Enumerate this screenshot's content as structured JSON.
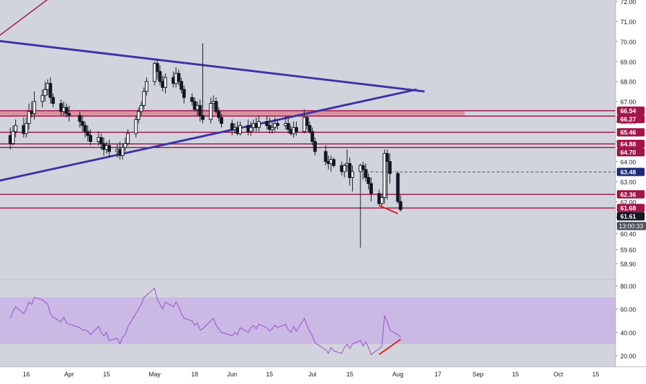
{
  "colors": {
    "background": "#d1d4dc",
    "axis_background": "#ffffff",
    "axis_text": "#131722",
    "trend_line": "#3b33a8",
    "level_line": "#a3154a",
    "zone_fill": "#e07b8c",
    "divergence": "#e82020",
    "rsi_line": "#9b4dca",
    "rsi_band": "#c9b3e6",
    "candle_up": "#ffffff",
    "candle_down": "#131722",
    "current_price_badge": "#131722",
    "level_badge": "#a3154a",
    "marker_badge": "#1e2a78"
  },
  "chart_data": [
    {
      "type": "candlestick",
      "role": "price",
      "x": [
        "2021-03-10",
        "2021-03-11",
        "2021-03-12",
        "2021-03-15",
        "2021-03-16",
        "2021-03-17",
        "2021-03-18",
        "2021-03-19",
        "2021-03-22",
        "2021-03-23",
        "2021-03-24",
        "2021-03-25",
        "2021-03-26",
        "2021-03-29",
        "2021-03-30",
        "2021-03-31",
        "2021-04-01",
        "2021-04-05",
        "2021-04-06",
        "2021-04-07",
        "2021-04-08",
        "2021-04-09",
        "2021-04-12",
        "2021-04-13",
        "2021-04-14",
        "2021-04-15",
        "2021-04-16",
        "2021-04-19",
        "2021-04-20",
        "2021-04-21",
        "2021-04-22",
        "2021-04-23",
        "2021-04-26",
        "2021-04-27",
        "2021-04-28",
        "2021-04-29",
        "2021-04-30",
        "2021-05-03",
        "2021-05-04",
        "2021-05-05",
        "2021-05-06",
        "2021-05-07",
        "2021-05-10",
        "2021-05-11",
        "2021-05-12",
        "2021-05-13",
        "2021-05-14",
        "2021-05-17",
        "2021-05-18",
        "2021-05-19",
        "2021-05-20",
        "2021-05-21",
        "2021-05-24",
        "2021-05-25",
        "2021-05-26",
        "2021-05-27",
        "2021-05-28",
        "2021-06-01",
        "2021-06-02",
        "2021-06-03",
        "2021-06-04",
        "2021-06-07",
        "2021-06-08",
        "2021-06-09",
        "2021-06-10",
        "2021-06-11",
        "2021-06-14",
        "2021-06-15",
        "2021-06-16",
        "2021-06-17",
        "2021-06-18",
        "2021-06-21",
        "2021-06-22",
        "2021-06-23",
        "2021-06-24",
        "2021-06-25",
        "2021-06-28",
        "2021-06-29",
        "2021-06-30",
        "2021-07-01",
        "2021-07-02",
        "2021-07-06",
        "2021-07-07",
        "2021-07-08",
        "2021-07-09",
        "2021-07-12",
        "2021-07-13",
        "2021-07-14",
        "2021-07-15",
        "2021-07-16",
        "2021-07-19",
        "2021-07-20",
        "2021-07-21",
        "2021-07-22",
        "2021-07-23",
        "2021-07-26",
        "2021-07-27",
        "2021-07-28",
        "2021-07-29",
        "2021-07-30",
        "2021-08-02",
        "2021-08-03"
      ],
      "open": [
        65.3,
        64.9,
        65.5,
        65.8,
        65.4,
        65.9,
        66.5,
        66.4,
        67.0,
        67.3,
        67.6,
        67.9,
        67.2,
        66.9,
        66.5,
        66.7,
        66.4,
        66.3,
        66.0,
        65.8,
        65.5,
        65.3,
        65.0,
        65.2,
        64.9,
        64.6,
        64.8,
        64.5,
        64.6,
        64.3,
        64.7,
        64.9,
        65.4,
        66.1,
        66.5,
        66.8,
        67.5,
        68.0,
        68.9,
        68.5,
        68.0,
        67.7,
        68.2,
        67.9,
        68.4,
        68.0,
        67.6,
        67.2,
        67.0,
        66.6,
        66.8,
        66.3,
        66.1,
        66.9,
        67.0,
        66.5,
        66.2,
        65.9,
        65.6,
        65.7,
        65.4,
        65.8,
        65.5,
        65.7,
        65.9,
        65.7,
        66.0,
        65.8,
        65.6,
        65.7,
        65.9,
        65.8,
        65.9,
        65.6,
        65.4,
        65.7,
        65.5,
        66.2,
        65.8,
        65.5,
        65.0,
        64.5,
        64.0,
        63.9,
        64.1,
        63.8,
        63.5,
        63.8,
        63.9,
        63.2,
        63.5,
        63.8,
        63.6,
        63.2,
        62.9,
        62.4,
        61.9,
        62.2,
        64.4,
        64.0,
        63.4,
        62.0
      ],
      "high": [
        65.7,
        65.8,
        66.1,
        66.2,
        66.2,
        66.9,
        67.0,
        67.5,
        67.6,
        68.0,
        68.1,
        68.2,
        67.4,
        67.1,
        67.0,
        66.9,
        66.8,
        66.5,
        66.3,
        66.0,
        65.8,
        65.6,
        65.5,
        65.4,
        65.2,
        65.0,
        65.1,
        64.9,
        65.0,
        64.9,
        65.2,
        65.6,
        66.3,
        66.7,
        67.0,
        67.7,
        68.2,
        69.0,
        69.1,
        68.8,
        68.3,
        68.4,
        68.5,
        68.7,
        68.6,
        68.2,
        67.8,
        67.4,
        67.2,
        67.0,
        67.1,
        69.9,
        67.2,
        67.3,
        67.2,
        66.7,
        66.4,
        66.1,
        65.9,
        66.0,
        66.0,
        66.1,
        66.0,
        66.1,
        66.2,
        66.3,
        66.3,
        66.2,
        66.0,
        66.2,
        66.1,
        66.3,
        66.2,
        65.8,
        66.0,
        66.0,
        66.6,
        66.3,
        66.0,
        65.7,
        65.2,
        64.8,
        64.3,
        64.3,
        64.2,
        64.0,
        63.9,
        64.6,
        64.2,
        63.8,
        63.9,
        64.0,
        63.9,
        63.4,
        63.2,
        62.6,
        62.4,
        64.6,
        64.6,
        64.4,
        63.5,
        62.3
      ],
      "low": [
        64.6,
        64.8,
        65.2,
        65.2,
        65.2,
        65.6,
        66.2,
        66.1,
        66.7,
        67.0,
        67.3,
        66.9,
        66.7,
        66.3,
        66.3,
        66.2,
        66.0,
        65.7,
        65.5,
        65.2,
        65.0,
        64.8,
        64.8,
        64.6,
        64.3,
        64.4,
        64.2,
        64.2,
        64.1,
        64.1,
        64.5,
        64.8,
        65.2,
        65.9,
        66.3,
        66.6,
        67.3,
        67.8,
        68.1,
        67.8,
        67.5,
        67.4,
        67.7,
        67.7,
        67.8,
        67.4,
        66.9,
        66.8,
        66.5,
        66.3,
        66.0,
        65.9,
        65.9,
        66.6,
        66.4,
        66.0,
        65.7,
        65.3,
        65.4,
        65.3,
        65.3,
        65.3,
        65.3,
        65.5,
        65.5,
        65.5,
        65.6,
        65.4,
        65.4,
        65.5,
        65.6,
        65.6,
        65.4,
        65.3,
        65.2,
        65.3,
        65.4,
        65.6,
        65.4,
        64.8,
        64.3,
        63.8,
        63.6,
        63.5,
        63.7,
        63.3,
        63.2,
        63.5,
        62.8,
        62.5,
        59.7,
        63.1,
        63.0,
        62.6,
        62.0,
        61.8,
        61.7,
        61.9,
        62.1,
        62.9,
        61.9,
        61.5
      ],
      "close": [
        64.9,
        65.5,
        65.8,
        65.4,
        65.9,
        66.5,
        66.4,
        67.0,
        67.3,
        67.6,
        67.9,
        67.2,
        66.9,
        66.5,
        66.7,
        66.4,
        66.3,
        66.0,
        65.8,
        65.5,
        65.3,
        65.0,
        65.2,
        64.9,
        64.6,
        64.8,
        64.5,
        64.6,
        64.3,
        64.7,
        64.9,
        65.4,
        66.1,
        66.5,
        66.8,
        67.5,
        68.0,
        68.9,
        68.5,
        68.0,
        67.7,
        68.2,
        67.9,
        68.4,
        68.0,
        67.6,
        67.2,
        67.0,
        66.6,
        66.8,
        66.3,
        66.1,
        66.9,
        67.0,
        66.5,
        66.2,
        65.9,
        65.6,
        65.7,
        65.4,
        65.8,
        65.5,
        65.7,
        65.9,
        65.7,
        66.0,
        65.8,
        65.6,
        65.7,
        65.9,
        65.8,
        65.9,
        65.6,
        65.4,
        65.7,
        65.5,
        66.2,
        65.8,
        65.5,
        65.0,
        64.5,
        64.0,
        63.9,
        64.1,
        63.8,
        63.5,
        63.8,
        63.9,
        63.2,
        63.5,
        63.8,
        63.6,
        63.2,
        62.9,
        62.4,
        61.9,
        62.2,
        64.4,
        64.0,
        63.4,
        62.0,
        61.6
      ],
      "y_ticks": [
        58.9,
        59.6,
        60.4,
        61.2,
        62.0,
        63.0,
        64.0,
        65.0,
        66.0,
        67.0,
        68.0,
        69.0,
        70.0,
        71.0,
        72.0
      ],
      "y_tick_labels": [
        "58.90",
        "59.60",
        "60.40",
        "61.20",
        "62.00",
        "63.00",
        "64.00",
        "65.00",
        "66.00",
        "67.00",
        "68.00",
        "69.00",
        "70.00",
        "71.00",
        "72.00"
      ],
      "ylim": [
        58.5,
        72.3
      ],
      "price_labels": [
        {
          "value": 66.54,
          "text": "66.54",
          "kind": "level"
        },
        {
          "value": 66.27,
          "text": "66.27",
          "kind": "level"
        },
        {
          "value": 65.46,
          "text": "65.46",
          "kind": "level"
        },
        {
          "value": 64.88,
          "text": "64.88",
          "kind": "level"
        },
        {
          "value": 64.7,
          "text": "64.70",
          "kind": "level"
        },
        {
          "value": 63.48,
          "text": "63.48",
          "kind": "marker"
        },
        {
          "value": 62.36,
          "text": "62.36",
          "kind": "level"
        },
        {
          "value": 61.68,
          "text": "61.68",
          "kind": "level"
        },
        {
          "value": 61.61,
          "text": "61.61",
          "kind": "current"
        }
      ],
      "countdown": "13:00:33",
      "horizontal_levels": [
        66.54,
        66.27,
        65.46,
        64.88,
        64.7,
        62.36,
        61.68
      ],
      "resistance_zone": {
        "from": 66.27,
        "to": 66.54,
        "x_end": "2021-08-27"
      },
      "dashed_level": {
        "value": 63.48,
        "x_start": "2021-07-21"
      },
      "trendlines": [
        {
          "name": "",
          "points": [
            [
              "2021-03-01",
              70.1
            ],
            [
              "2021-08-12",
              67.5
            ]
          ],
          "role": "descending"
        },
        {
          "name": "",
          "points": [
            [
              "2021-03-01",
              62.9
            ],
            [
              "2021-08-09",
              67.6
            ]
          ],
          "role": "ascending"
        },
        {
          "name": "",
          "points": [
            [
              "2021-03-01",
              69.8
            ],
            [
              "2021-03-26",
              72.3
            ]
          ],
          "role": "outer"
        }
      ],
      "divergence_line": [
        [
          "2021-07-26",
          61.8
        ],
        [
          "2021-08-02",
          61.4
        ]
      ]
    },
    {
      "type": "line",
      "role": "rsi",
      "y_ticks": [
        20,
        40,
        60,
        80
      ],
      "y_tick_labels": [
        "20.00",
        "40.00",
        "60.00",
        "80.00"
      ],
      "ylim": [
        15,
        85
      ],
      "band": [
        30,
        70
      ],
      "x": [
        "2021-03-10",
        "2021-03-11",
        "2021-03-12",
        "2021-03-15",
        "2021-03-16",
        "2021-03-17",
        "2021-03-18",
        "2021-03-19",
        "2021-03-22",
        "2021-03-23",
        "2021-03-24",
        "2021-03-25",
        "2021-03-26",
        "2021-03-29",
        "2021-03-30",
        "2021-03-31",
        "2021-04-01",
        "2021-04-05",
        "2021-04-06",
        "2021-04-07",
        "2021-04-08",
        "2021-04-09",
        "2021-04-12",
        "2021-04-13",
        "2021-04-14",
        "2021-04-15",
        "2021-04-16",
        "2021-04-19",
        "2021-04-20",
        "2021-04-21",
        "2021-04-22",
        "2021-04-23",
        "2021-04-26",
        "2021-04-27",
        "2021-04-28",
        "2021-04-29",
        "2021-04-30",
        "2021-05-03",
        "2021-05-04",
        "2021-05-05",
        "2021-05-06",
        "2021-05-07",
        "2021-05-10",
        "2021-05-11",
        "2021-05-12",
        "2021-05-13",
        "2021-05-14",
        "2021-05-17",
        "2021-05-18",
        "2021-05-19",
        "2021-05-20",
        "2021-05-21",
        "2021-05-24",
        "2021-05-25",
        "2021-05-26",
        "2021-05-27",
        "2021-05-28",
        "2021-06-01",
        "2021-06-02",
        "2021-06-03",
        "2021-06-04",
        "2021-06-07",
        "2021-06-08",
        "2021-06-09",
        "2021-06-10",
        "2021-06-11",
        "2021-06-14",
        "2021-06-15",
        "2021-06-16",
        "2021-06-17",
        "2021-06-18",
        "2021-06-21",
        "2021-06-22",
        "2021-06-23",
        "2021-06-24",
        "2021-06-25",
        "2021-06-28",
        "2021-06-29",
        "2021-06-30",
        "2021-07-01",
        "2021-07-02",
        "2021-07-06",
        "2021-07-07",
        "2021-07-08",
        "2021-07-09",
        "2021-07-12",
        "2021-07-13",
        "2021-07-14",
        "2021-07-15",
        "2021-07-16",
        "2021-07-19",
        "2021-07-20",
        "2021-07-21",
        "2021-07-22",
        "2021-07-23",
        "2021-07-26",
        "2021-07-27",
        "2021-07-28",
        "2021-07-29",
        "2021-07-30",
        "2021-08-02",
        "2021-08-03"
      ],
      "values": [
        52,
        58,
        62,
        56,
        60,
        66,
        64,
        70,
        68,
        66,
        64,
        56,
        53,
        49,
        53,
        48,
        47,
        44,
        42,
        42,
        41,
        38,
        45,
        40,
        37,
        40,
        33,
        35,
        30,
        36,
        38,
        45,
        56,
        60,
        64,
        70,
        72,
        78,
        68,
        64,
        60,
        66,
        62,
        66,
        62,
        56,
        52,
        50,
        46,
        48,
        42,
        43,
        50,
        52,
        46,
        43,
        40,
        37,
        40,
        38,
        44,
        40,
        44,
        46,
        43,
        47,
        44,
        41,
        43,
        46,
        44,
        47,
        42,
        40,
        45,
        41,
        52,
        46,
        41,
        37,
        31,
        25,
        22,
        27,
        24,
        22,
        27,
        30,
        26,
        30,
        33,
        28,
        32,
        27,
        21,
        26,
        28,
        54,
        50,
        42,
        38,
        36
      ]
    }
  ],
  "x_axis": {
    "ticks": [
      "2021-03-16",
      "2021-04-01",
      "2021-04-15",
      "2021-05-03",
      "2021-05-18",
      "2021-06-01",
      "2021-06-15",
      "2021-07-01",
      "2021-07-15",
      "2021-08-02",
      "2021-08-17",
      "2021-09-01",
      "2021-09-15",
      "2021-10-01",
      "2021-10-15"
    ],
    "labels": [
      "16",
      "Apr",
      "15",
      "May",
      "18",
      "Jun",
      "15",
      "Jul",
      "15",
      "Aug",
      "17",
      "Sep",
      "15",
      "Oct",
      "15"
    ]
  },
  "rsi_y_axis": {
    "labels": [
      "20.00",
      "40.00",
      "60.00",
      "80.00"
    ]
  }
}
